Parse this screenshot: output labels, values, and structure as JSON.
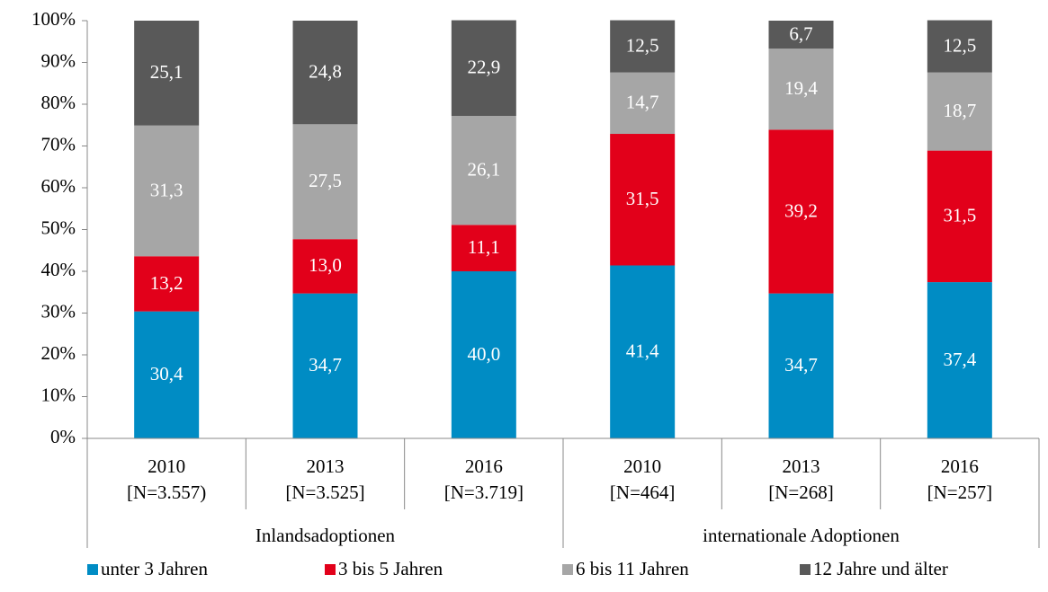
{
  "chart_data": {
    "type": "stacked_bar_100",
    "groups": [
      {
        "name": "Inlandsadoptionen",
        "categories": [
          [
            "2010",
            "[N=3.557)"
          ],
          [
            "2013",
            "[N=3.525]"
          ],
          [
            "2016",
            "[N=3.719]"
          ]
        ]
      },
      {
        "name": "internationale Adoptionen",
        "categories": [
          [
            "2010",
            "[N=464]"
          ],
          [
            "2013",
            "[N=268]"
          ],
          [
            "2016",
            "[N=257]"
          ]
        ]
      }
    ],
    "series": [
      {
        "name": "unter 3 Jahren",
        "color": "#008cc4",
        "values": [
          30.4,
          34.7,
          40.0,
          41.4,
          34.7,
          37.4
        ],
        "value_labels": [
          "30,4",
          "34,7",
          "40,0",
          "41,4",
          "34,7",
          "37,4"
        ]
      },
      {
        "name": "3 bis 5 Jahren",
        "color": "#e2001a",
        "values": [
          13.2,
          13.0,
          11.1,
          31.5,
          39.2,
          31.5
        ],
        "value_labels": [
          "13,2",
          "13,0",
          "11,1",
          "31,5",
          "39,2",
          "31,5"
        ]
      },
      {
        "name": "6 bis 11 Jahren",
        "color": "#a6a6a6",
        "values": [
          31.3,
          27.5,
          26.1,
          14.7,
          19.4,
          18.7
        ],
        "value_labels": [
          "31,3",
          "27,5",
          "26,1",
          "14,7",
          "19,4",
          "18,7"
        ]
      },
      {
        "name": "12 Jahre und älter",
        "color": "#595959",
        "values": [
          25.1,
          24.8,
          22.9,
          12.5,
          6.7,
          12.5
        ],
        "value_labels": [
          "25,1",
          "24,8",
          "22,9",
          "12,5",
          "6,7",
          "12,5"
        ]
      }
    ],
    "ylim": [
      0,
      100
    ],
    "yticks": [
      {
        "value": 0,
        "label": "0%"
      },
      {
        "value": 10,
        "label": "10%"
      },
      {
        "value": 20,
        "label": "20%"
      },
      {
        "value": 30,
        "label": "30%"
      },
      {
        "value": 40,
        "label": "40%"
      },
      {
        "value": 50,
        "label": "50%"
      },
      {
        "value": 60,
        "label": "60%"
      },
      {
        "value": 70,
        "label": "70%"
      },
      {
        "value": 80,
        "label": "80%"
      },
      {
        "value": 90,
        "label": "90%"
      },
      {
        "value": 100,
        "label": "100%"
      }
    ],
    "legend": "bottom"
  }
}
